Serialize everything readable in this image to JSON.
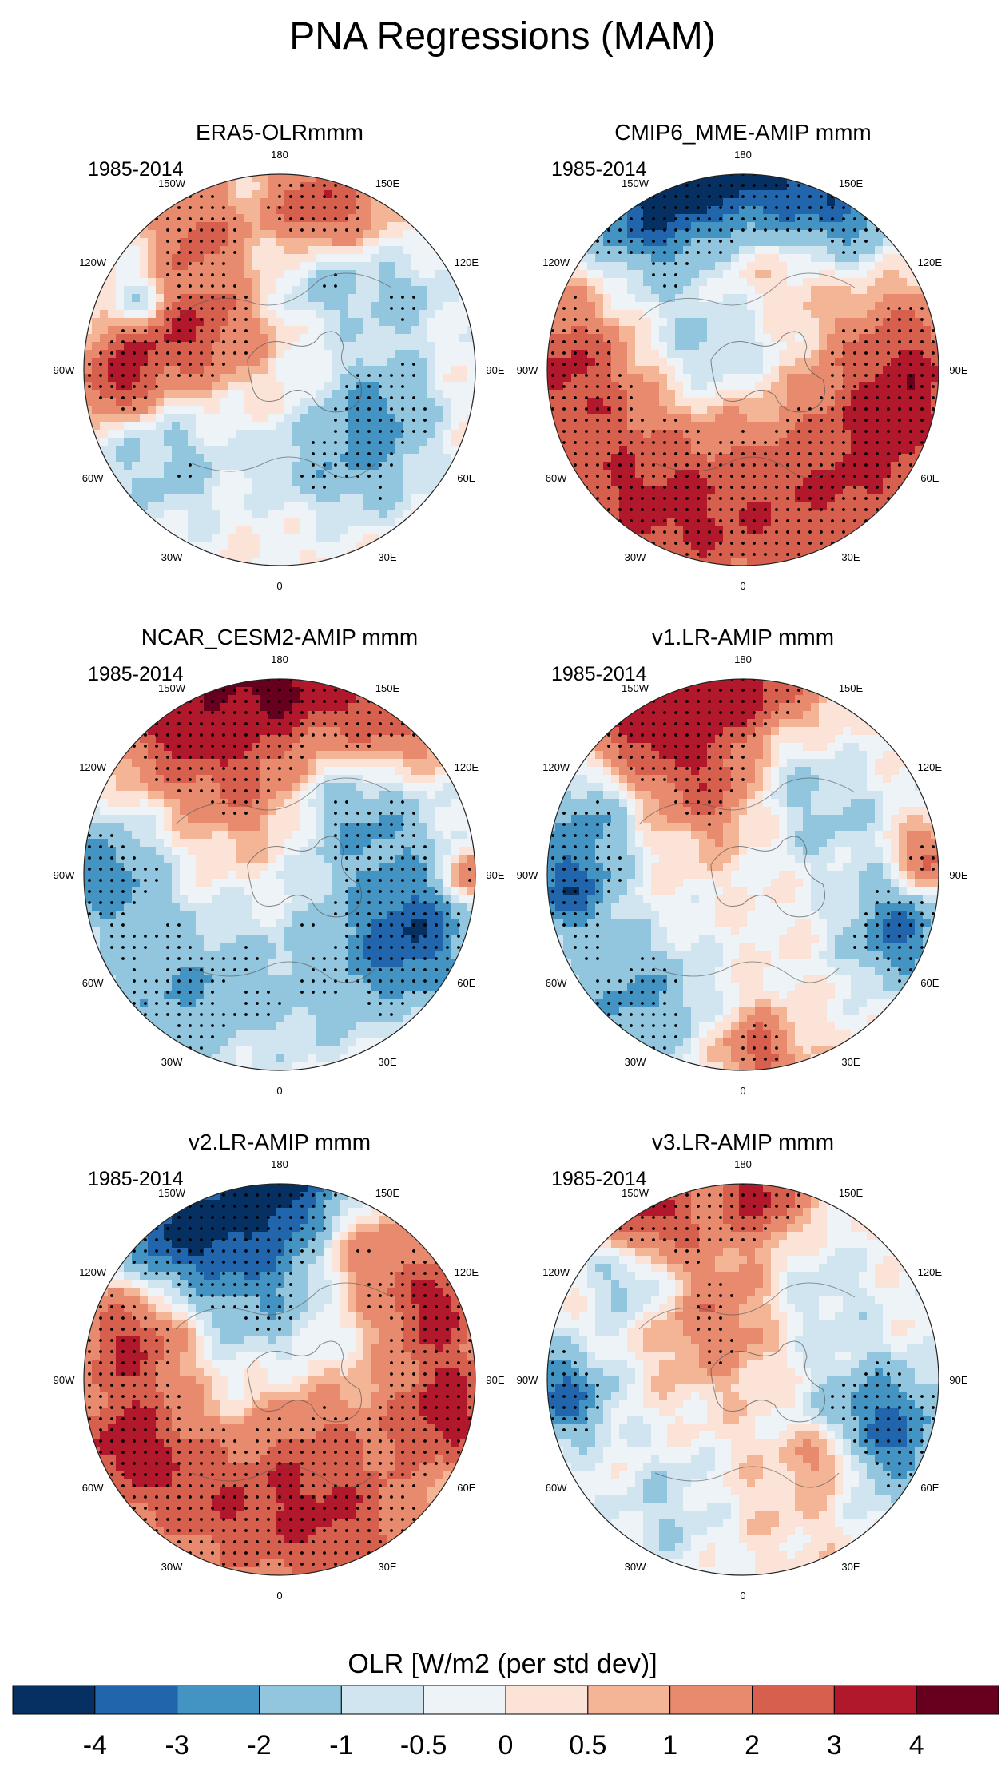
{
  "title": "PNA Regressions (MAM)",
  "period": "1985-2014",
  "lon_labels": [
    "180",
    "150E",
    "120E",
    "90E",
    "60E",
    "30E",
    "0",
    "30W",
    "60W",
    "90W",
    "120W",
    "150W"
  ],
  "panels": [
    {
      "title": "ERA5-OLRmmm",
      "pattern": "era5"
    },
    {
      "title": "CMIP6_MME-AMIP  mmm",
      "pattern": "cmip6"
    },
    {
      "title": "NCAR_CESM2-AMIP  mmm",
      "pattern": "cesm2"
    },
    {
      "title": "v1.LR-AMIP  mmm",
      "pattern": "v1"
    },
    {
      "title": "v2.LR-AMIP  mmm",
      "pattern": "v2"
    },
    {
      "title": "v3.LR-AMIP  mmm",
      "pattern": "v3"
    }
  ],
  "colorbar": {
    "title": "OLR [W/m2 (per std dev)]",
    "levels": [
      "-4",
      "-3",
      "-2",
      "-1",
      "-0.5",
      "0",
      "0.5",
      "1",
      "2",
      "3",
      "4"
    ],
    "colors": [
      "#053061",
      "#2166ac",
      "#4393c3",
      "#92c5de",
      "#d1e5f0",
      "#eef3f8",
      "#fbe3d8",
      "#f4b596",
      "#e88a6e",
      "#d6604d",
      "#b2182b",
      "#67001f"
    ]
  }
}
